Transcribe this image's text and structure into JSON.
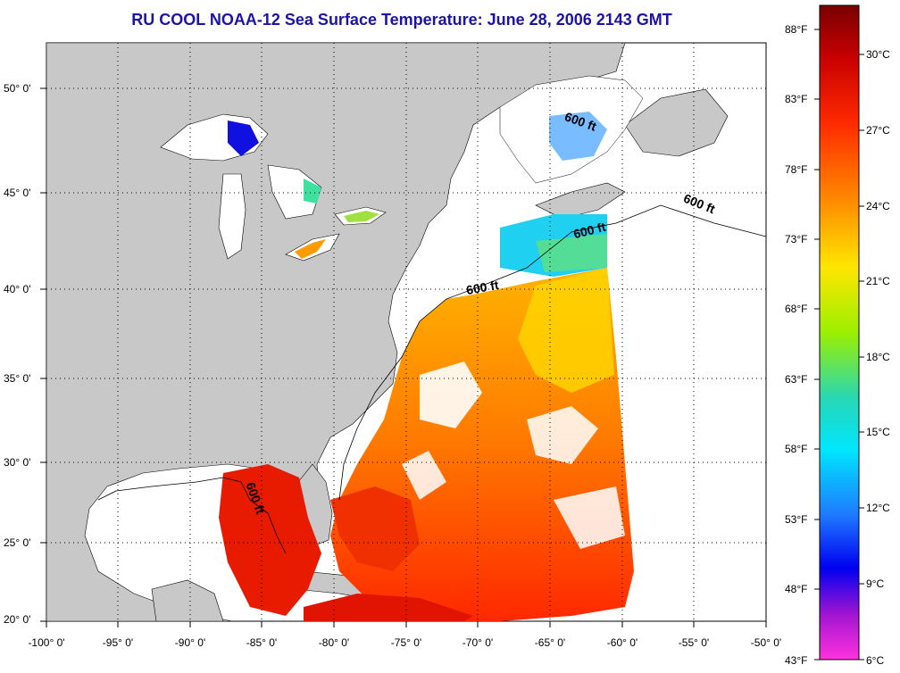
{
  "title": "RU COOL  NOAA-12  Sea Surface Temperature:  June 28, 2006 2143 GMT",
  "longitude_labels": [
    "-100° 0'",
    "-95° 0'",
    "-90° 0'",
    "-85° 0'",
    "-80° 0'",
    "-75° 0'",
    "-70° 0'",
    "-65° 0'",
    "-60° 0'",
    "-55° 0'",
    "-50° 0'"
  ],
  "latitude_labels": [
    "50° 0'",
    "45° 0'",
    "40° 0'",
    "35° 0'",
    "30° 0'",
    "25° 0'",
    "20° 0'"
  ],
  "colorbar": {
    "fahrenheit": [
      "88°F",
      "83°F",
      "78°F",
      "73°F",
      "68°F",
      "63°F",
      "58°F",
      "53°F",
      "48°F",
      "43°F"
    ],
    "celsius": [
      "30°C",
      "27°C",
      "24°C",
      "21°C",
      "18°C",
      "15°C",
      "12°C",
      "9°C",
      "6°C"
    ]
  },
  "contour_label": "600 ft",
  "colors": {
    "title": "#1b14a6",
    "land": "#c8c8c8",
    "ocean": "#ffffff",
    "grid": "#000000"
  }
}
